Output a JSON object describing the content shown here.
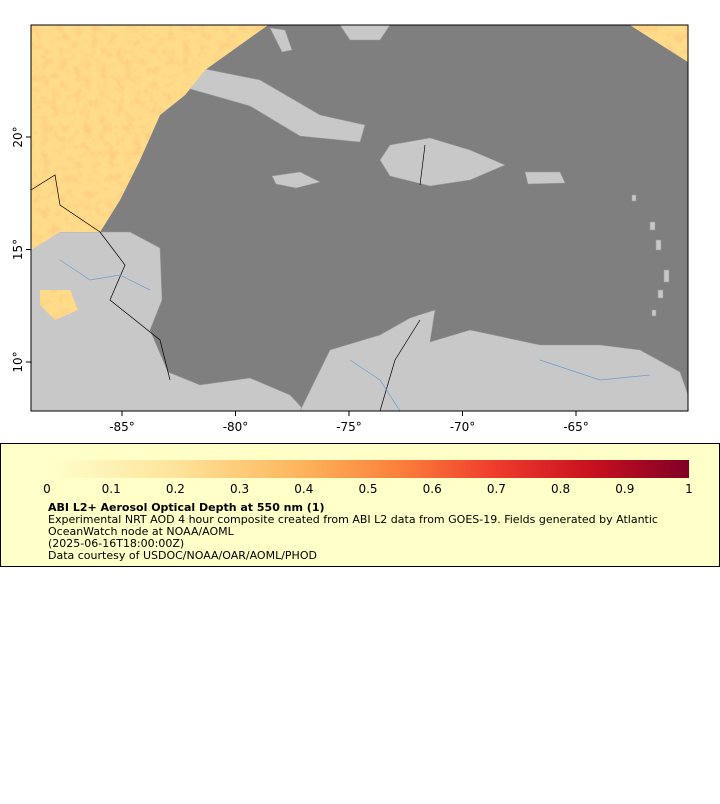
{
  "map": {
    "x_ticks": [
      "-85°",
      "-80°",
      "-75°",
      "-70°",
      "-65°"
    ],
    "y_ticks": [
      "20°",
      "15°",
      "10°"
    ]
  },
  "legend": {
    "ticks": [
      "0",
      "0.1",
      "0.2",
      "0.3",
      "0.4",
      "0.5",
      "0.6",
      "0.7",
      "0.8",
      "0.9",
      "1"
    ],
    "title": "ABI L2+ Aerosol Optical Depth at 550 nm (1)",
    "lines": [
      "Experimental NRT AOD 4 hour composite created from ABI L2 data from GOES-19. Fields generated by Atlantic",
      "OceanWatch node at NOAA/AOML",
      "(2025-06-16T18:00:00Z)",
      "Data courtesy of USDOC/NOAA/OAR/AOML/PHOD"
    ]
  }
}
